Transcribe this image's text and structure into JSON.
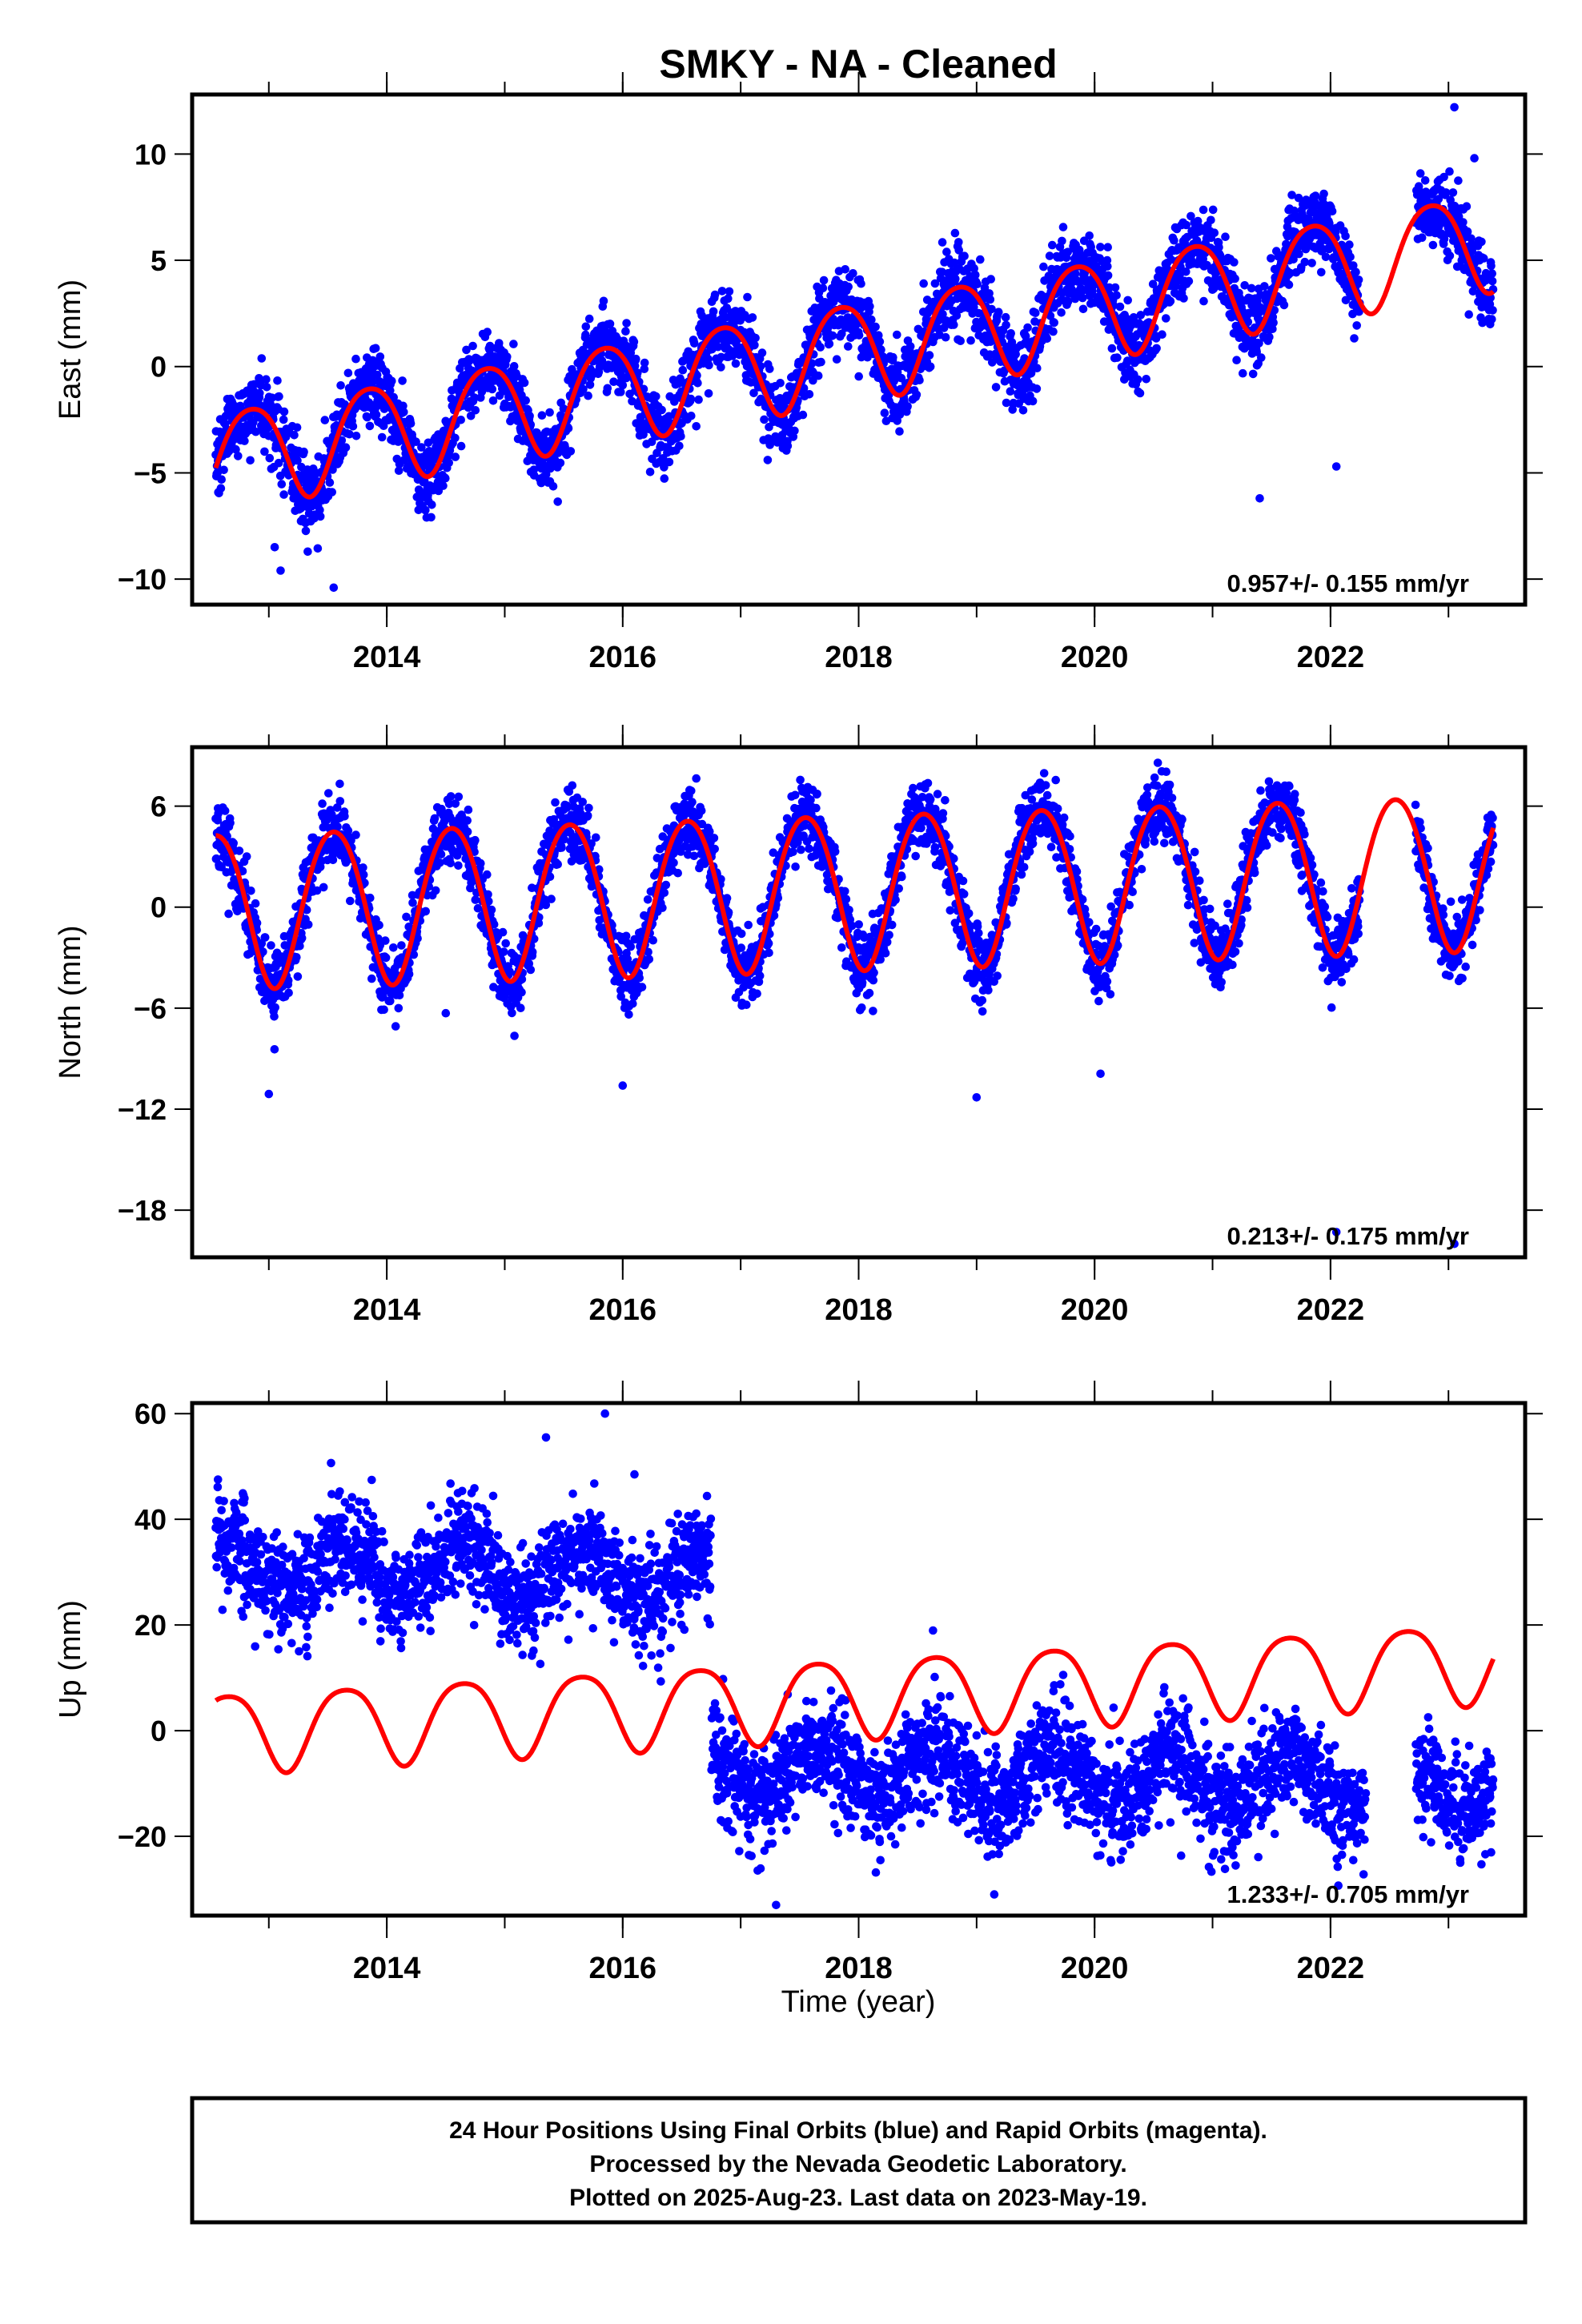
{
  "title": "SMKY  - NA - Cleaned",
  "x_axis_label": "Time (year)",
  "footer": {
    "line1": "24 Hour Positions Using Final Orbits (blue) and Rapid Orbits (magenta).",
    "line2": "Processed by the Nevada Geodetic Laboratory.",
    "line3": "Plotted on 2025-Aug-23. Last data on 2023-May-19."
  },
  "colors": {
    "data": "#0000ff",
    "fit": "#ff0000",
    "frame": "#000000"
  },
  "chart_data": [
    {
      "type": "scatter",
      "component": "east",
      "ylabel": "East (mm)",
      "rate_text": "0.957+/- 0.155 mm/yr",
      "xlim": [
        2012.35,
        2023.65
      ],
      "ylim": [
        -11.2,
        12.8
      ],
      "yticks": [
        10,
        5,
        0,
        -5,
        -10
      ],
      "ytick_labels": [
        "10",
        "5",
        "0",
        "−5",
        "−10"
      ],
      "xticks": [
        2014,
        2016,
        2018,
        2020,
        2022
      ],
      "data_range": [
        2012.55,
        2023.38
      ],
      "gaps": [
        [
          2022.25,
          2022.72
        ]
      ],
      "model": {
        "ref_year": 2012.55,
        "intercept": -4.3,
        "rate": 0.957,
        "annual_amp": 2.3,
        "annual_peak": 0.85,
        "semi_amp": 0.3,
        "semi_peak": 0.1,
        "noise": 0.9
      },
      "outliers": [
        [
          2013.05,
          -8.5
        ],
        [
          2013.1,
          -9.6
        ],
        [
          2013.55,
          -10.4
        ],
        [
          2021.4,
          -6.2
        ],
        [
          2022.05,
          -4.7
        ],
        [
          2023.05,
          12.2
        ],
        [
          2023.22,
          9.8
        ]
      ]
    },
    {
      "type": "scatter",
      "component": "north",
      "ylabel": "North (mm)",
      "rate_text": "0.213+/- 0.175 mm/yr",
      "xlim": [
        2012.35,
        2023.65
      ],
      "ylim": [
        -20.8,
        9.5
      ],
      "yticks": [
        6,
        0,
        -6,
        -12,
        -18
      ],
      "ytick_labels": [
        "6",
        "0",
        "−6",
        "−12",
        "−18"
      ],
      "xticks": [
        2014,
        2016,
        2018,
        2020,
        2022
      ],
      "data_range": [
        2012.55,
        2023.38
      ],
      "gaps": [
        [
          2022.25,
          2022.72
        ]
      ],
      "model": {
        "ref_year": 2012.55,
        "intercept": 0.0,
        "rate": 0.213,
        "annual_amp": 4.6,
        "annual_peak": 0.55,
        "semi_amp": 0.35,
        "semi_peak": 0.3,
        "noise": 1.0
      },
      "outliers": [
        [
          2013.0,
          -11.1
        ],
        [
          2014.5,
          -6.3
        ],
        [
          2016.0,
          -10.6
        ],
        [
          2019.0,
          -11.3
        ],
        [
          2020.05,
          -9.9
        ],
        [
          2022.05,
          -19.3
        ],
        [
          2023.05,
          -20.0
        ]
      ]
    },
    {
      "type": "scatter",
      "component": "up",
      "ylabel": "Up (mm)",
      "rate_text": "1.233+/- 0.705 mm/yr",
      "xlim": [
        2012.35,
        2023.65
      ],
      "ylim": [
        -35,
        62
      ],
      "yticks": [
        60,
        40,
        20,
        0,
        -20
      ],
      "ytick_labels": [
        "60",
        "40",
        "20",
        "0",
        "−20"
      ],
      "xticks": [
        2014,
        2016,
        2018,
        2020,
        2022
      ],
      "data_range": [
        2012.55,
        2023.38
      ],
      "gaps": [
        [
          2022.3,
          2022.72
        ]
      ],
      "step": {
        "year": 2016.75,
        "before": 29.0,
        "after": -7.0
      },
      "model": {
        "ref_year": 2012.55,
        "intercept": 0.0,
        "rate": 1.233,
        "annual_amp": 7.5,
        "annual_peak": 0.65,
        "semi_amp": 1.2,
        "semi_peak": 0.4,
        "noise": 5.0,
        "data_annual_amp": 5.0,
        "data_rate": -0.6
      },
      "fit_offset": 0.0,
      "outliers": [
        [
          2015.35,
          55.5
        ],
        [
          2015.85,
          60.0
        ],
        [
          2016.1,
          48.5
        ],
        [
          2017.3,
          -33.0
        ],
        [
          2019.15,
          -31.0
        ],
        [
          2023.1,
          -25.0
        ]
      ]
    }
  ]
}
